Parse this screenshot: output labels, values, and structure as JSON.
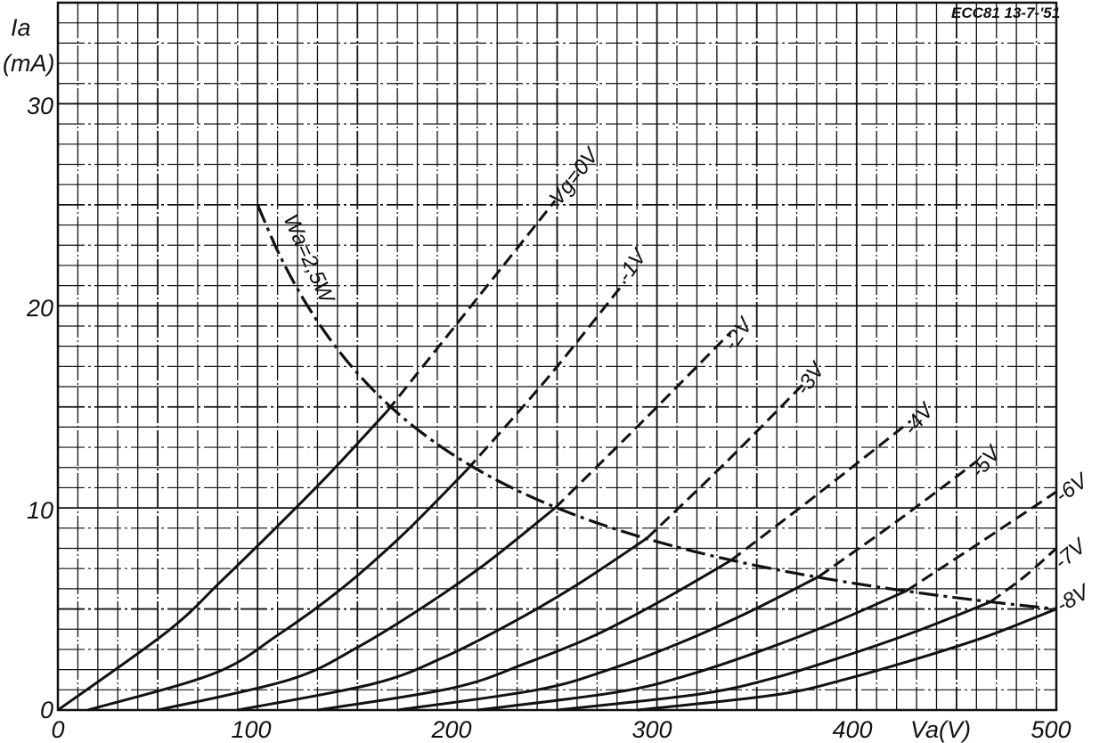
{
  "chart_data": {
    "type": "line",
    "title": "ECC81 13-7-'51",
    "xlabel": "Va(V)",
    "ylabel_symbol": "Ia",
    "ylabel_unit": "(mA)",
    "xlim": [
      0,
      500
    ],
    "ylim": [
      0,
      35
    ],
    "grid": {
      "on": true,
      "x_step": 10,
      "y_step": 1
    },
    "x_ticks": [
      "0",
      "100",
      "200",
      "300",
      "400",
      "500"
    ],
    "y_ticks": [
      "0",
      "10",
      "20",
      "30"
    ],
    "series": [
      {
        "name": "Vg=0V",
        "label": "Vg=0V",
        "dissipation_crossing_V": 165,
        "points": [
          [
            0,
            0
          ],
          [
            55,
            3.9
          ],
          [
            82,
            6.4
          ],
          [
            110,
            9.1
          ],
          [
            137,
            11.8
          ],
          [
            165,
            14.8
          ],
          [
            207,
            20.0
          ],
          [
            249,
            25.2
          ]
        ]
      },
      {
        "name": "-1V",
        "label": "-1V",
        "dissipation_crossing_V": 205,
        "points": [
          [
            15,
            0
          ],
          [
            78,
            1.8
          ],
          [
            110,
            3.7
          ],
          [
            142,
            6.0
          ],
          [
            173,
            8.7
          ],
          [
            205,
            11.9
          ],
          [
            245,
            16.4
          ],
          [
            284,
            21.2
          ]
        ]
      },
      {
        "name": "-2V",
        "label": "-2V",
        "dissipation_crossing_V": 249,
        "points": [
          [
            50,
            0
          ],
          [
            116,
            1.5
          ],
          [
            150,
            3.1
          ],
          [
            183,
            5.1
          ],
          [
            215,
            7.3
          ],
          [
            249,
            10.0
          ],
          [
            293,
            14.3
          ],
          [
            337,
            18.7
          ]
        ]
      },
      {
        "name": "-3V",
        "label": "-3V",
        "dissipation_crossing_V": 295,
        "points": [
          [
            90,
            0
          ],
          [
            158,
            1.3
          ],
          [
            193,
            2.6
          ],
          [
            227,
            4.3
          ],
          [
            260,
            6.2
          ],
          [
            295,
            8.5
          ],
          [
            335,
            12.3
          ],
          [
            374,
            16.2
          ]
        ]
      },
      {
        "name": "-4V",
        "label": "-4V",
        "dissipation_crossing_V": 337,
        "points": [
          [
            130,
            0
          ],
          [
            198,
            1.1
          ],
          [
            234,
            2.3
          ],
          [
            269,
            3.7
          ],
          [
            302,
            5.4
          ],
          [
            337,
            7.4
          ],
          [
            382,
            10.8
          ],
          [
            427,
            14.3
          ]
        ]
      },
      {
        "name": "-5V",
        "label": "-5V",
        "dissipation_crossing_V": 381,
        "points": [
          [
            170,
            0
          ],
          [
            240,
            1.0
          ],
          [
            276,
            2.0
          ],
          [
            311,
            3.3
          ],
          [
            345,
            4.8
          ],
          [
            381,
            6.6
          ],
          [
            421,
            9.4
          ],
          [
            460,
            12.3
          ]
        ]
      },
      {
        "name": "-6V",
        "label": "-6V",
        "dissipation_crossing_V": 425,
        "points": [
          [
            210,
            0
          ],
          [
            281,
            0.9
          ],
          [
            318,
            1.8
          ],
          [
            354,
            3.0
          ],
          [
            388,
            4.3
          ],
          [
            425,
            5.9
          ],
          [
            462,
            8.3
          ],
          [
            500,
            10.8
          ]
        ]
      },
      {
        "name": "-7V",
        "label": "-7V",
        "dissipation_crossing_V": 467,
        "points": [
          [
            250,
            0
          ],
          [
            322,
            0.8
          ],
          [
            359,
            1.6
          ],
          [
            395,
            2.7
          ],
          [
            430,
            3.9
          ],
          [
            467,
            5.35
          ],
          [
            484,
            6.6
          ],
          [
            500,
            8.0
          ]
        ]
      },
      {
        "name": "-8V",
        "label": "-8V",
        "dissipation_crossing_V": 500,
        "points": [
          [
            290,
            0
          ],
          [
            360,
            0.76
          ],
          [
            395,
            1.54
          ],
          [
            430,
            2.53
          ],
          [
            465,
            3.64
          ],
          [
            500,
            5.0
          ]
        ]
      }
    ],
    "dissipation_curve": {
      "label": "Wa=2,5W",
      "power_W": 2.5,
      "v_range": [
        100,
        500
      ]
    },
    "colors": {
      "ink": "#111111",
      "paper": "#ffffff"
    }
  }
}
